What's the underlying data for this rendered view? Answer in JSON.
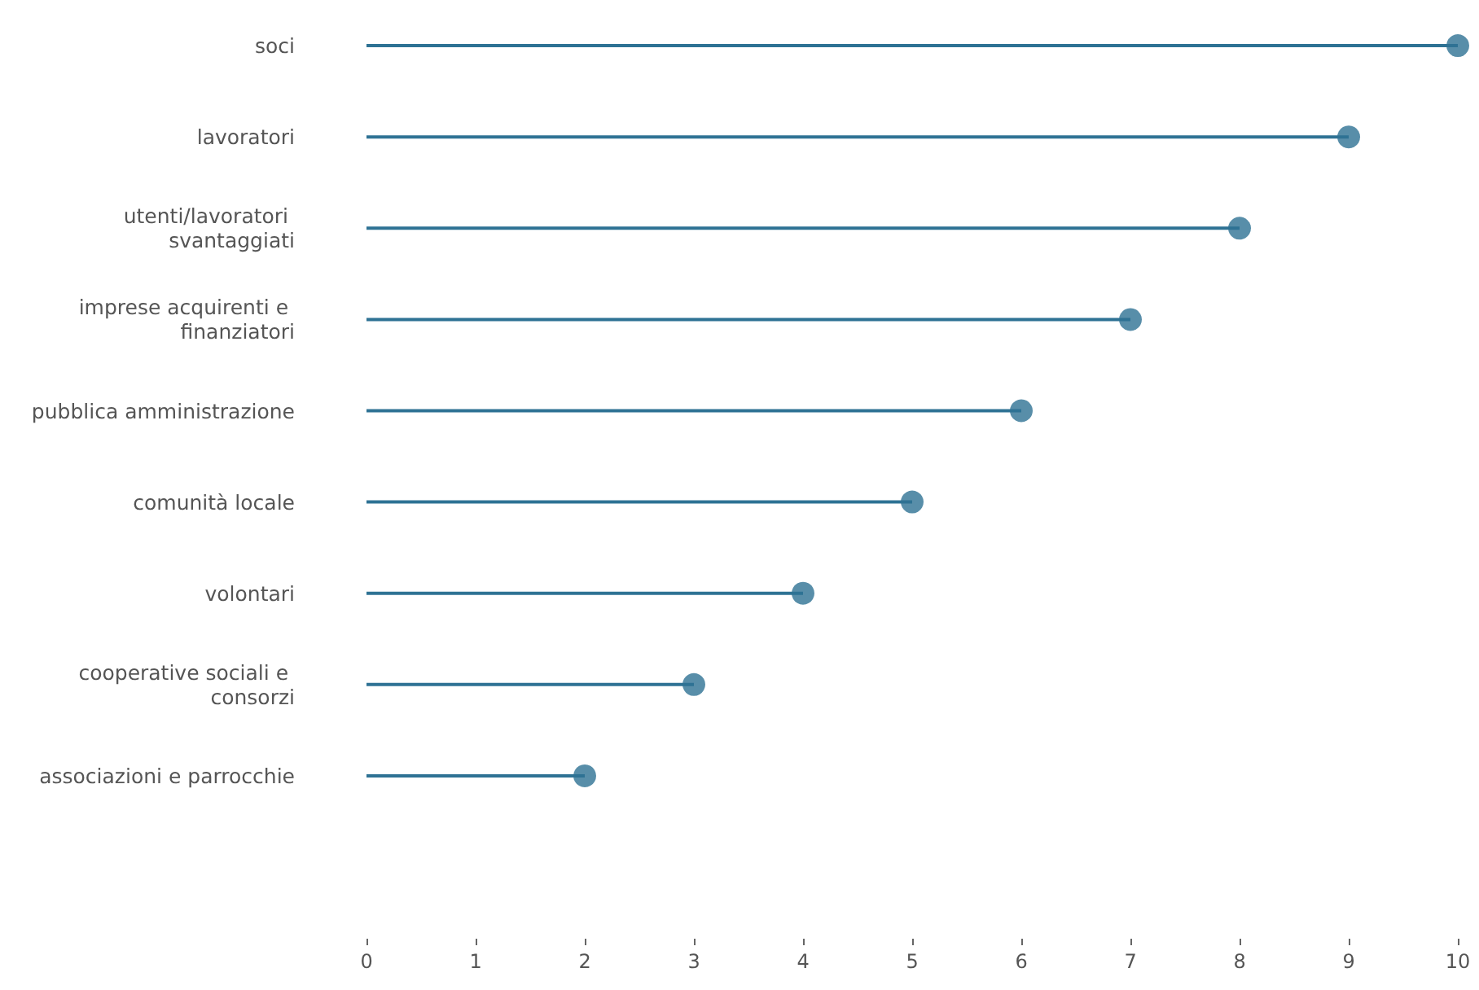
{
  "chart_data": {
    "type": "lollipop",
    "orientation": "horizontal",
    "categories": [
      "soci",
      "lavoratori",
      "utenti/lavoratori svantaggiati",
      "imprese acquirenti e finanziatori",
      "pubblica amministrazione",
      "comunità locale",
      "volontari",
      "cooperative sociali e consorzi",
      "associazioni e parrocchie"
    ],
    "values": [
      10,
      9,
      8,
      7,
      6,
      5,
      4,
      3,
      2
    ],
    "color": "#2e7294",
    "marker": "circle",
    "xlim": [
      0,
      10
    ],
    "xticks": [
      0,
      1,
      2,
      3,
      4,
      5,
      6,
      7,
      8,
      9,
      10
    ],
    "grid": false
  }
}
